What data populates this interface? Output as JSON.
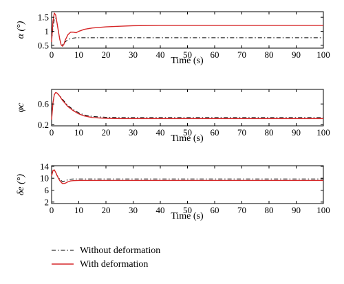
{
  "chart_data": [
    {
      "type": "line",
      "ylabel": "α (°)",
      "xlabel": "Time (s)",
      "xlim": [
        0,
        100
      ],
      "ylim": [
        0.4,
        1.7
      ],
      "xticks": [
        0,
        10,
        20,
        30,
        40,
        50,
        60,
        70,
        80,
        90,
        100
      ],
      "yticks": [
        0.5,
        1,
        1.5
      ],
      "ytick_labels": [
        "0.5",
        "1",
        "1.5"
      ],
      "grid": false,
      "series": [
        {
          "name": "Without deformation",
          "style": "dash-dot",
          "color": "#000000",
          "x": [
            0,
            0.5,
            1,
            1.5,
            2,
            2.5,
            3,
            3.5,
            4,
            4.5,
            5,
            6,
            7,
            8,
            9,
            10,
            12,
            15,
            20,
            30,
            40,
            50,
            60,
            70,
            80,
            90,
            100
          ],
          "y": [
            0.62,
            1.15,
            1.42,
            1.48,
            1.3,
            1.0,
            0.72,
            0.55,
            0.52,
            0.56,
            0.62,
            0.7,
            0.74,
            0.76,
            0.77,
            0.77,
            0.77,
            0.77,
            0.77,
            0.77,
            0.77,
            0.77,
            0.77,
            0.77,
            0.77,
            0.77,
            0.77
          ]
        },
        {
          "name": "With deformation",
          "style": "solid",
          "color": "#d62728",
          "x": [
            0,
            0.5,
            1,
            1.5,
            2,
            2.5,
            3,
            3.5,
            4,
            4.5,
            5,
            6,
            7,
            8,
            9,
            10,
            12,
            15,
            20,
            25,
            30,
            40,
            50,
            60,
            70,
            80,
            90,
            100
          ],
          "y": [
            0.62,
            1.35,
            1.65,
            1.58,
            1.3,
            1.0,
            0.72,
            0.52,
            0.47,
            0.53,
            0.68,
            0.88,
            0.97,
            0.97,
            0.95,
            1.0,
            1.07,
            1.12,
            1.16,
            1.18,
            1.2,
            1.21,
            1.21,
            1.21,
            1.21,
            1.21,
            1.21,
            1.21
          ]
        }
      ]
    },
    {
      "type": "line",
      "ylabel": "φc",
      "xlabel": "Time (s)",
      "xlim": [
        0,
        100
      ],
      "ylim": [
        0.18,
        0.88
      ],
      "xticks": [
        0,
        10,
        20,
        30,
        40,
        50,
        60,
        70,
        80,
        90,
        100
      ],
      "yticks": [
        0.2,
        0.6
      ],
      "ytick_labels": [
        "0.2",
        "0.6"
      ],
      "grid": false,
      "series": [
        {
          "name": "Without deformation",
          "style": "dash-dot",
          "color": "#000000",
          "x": [
            0,
            0.5,
            1,
            1.5,
            2,
            3,
            4,
            5,
            6,
            8,
            10,
            12,
            15,
            18,
            20,
            25,
            30,
            40,
            50,
            60,
            70,
            80,
            90,
            100
          ],
          "y": [
            0.3,
            0.62,
            0.78,
            0.82,
            0.81,
            0.76,
            0.69,
            0.63,
            0.57,
            0.49,
            0.43,
            0.39,
            0.36,
            0.35,
            0.345,
            0.34,
            0.34,
            0.34,
            0.34,
            0.34,
            0.34,
            0.34,
            0.34,
            0.34
          ]
        },
        {
          "name": "With deformation",
          "style": "solid",
          "color": "#d62728",
          "x": [
            0,
            0.5,
            1,
            1.5,
            2,
            3,
            4,
            5,
            6,
            8,
            10,
            12,
            15,
            18,
            20,
            25,
            30,
            40,
            50,
            60,
            70,
            80,
            90,
            100
          ],
          "y": [
            0.3,
            0.62,
            0.78,
            0.82,
            0.81,
            0.75,
            0.67,
            0.61,
            0.55,
            0.47,
            0.41,
            0.37,
            0.34,
            0.33,
            0.325,
            0.32,
            0.32,
            0.32,
            0.32,
            0.32,
            0.32,
            0.32,
            0.32,
            0.32
          ]
        }
      ]
    },
    {
      "type": "line",
      "ylabel": "δe (°)",
      "xlabel": "Time (s)",
      "xlim": [
        0,
        100
      ],
      "ylim": [
        1.5,
        14.2
      ],
      "xticks": [
        0,
        10,
        20,
        30,
        40,
        50,
        60,
        70,
        80,
        90,
        100
      ],
      "yticks": [
        2,
        6,
        10,
        14
      ],
      "ytick_labels": [
        "2",
        "6",
        "10",
        "14"
      ],
      "grid": false,
      "series": [
        {
          "name": "Without deformation",
          "style": "dash-dot",
          "color": "#000000",
          "x": [
            0,
            0.5,
            1,
            1.5,
            2,
            3,
            4,
            5,
            6,
            7,
            8,
            10,
            15,
            20,
            30,
            40,
            50,
            60,
            70,
            80,
            90,
            100
          ],
          "y": [
            10.8,
            12.4,
            12.6,
            12.0,
            11.0,
            9.6,
            8.9,
            9.1,
            9.5,
            9.7,
            9.75,
            9.75,
            9.75,
            9.75,
            9.75,
            9.75,
            9.75,
            9.75,
            9.75,
            9.75,
            9.75,
            9.75
          ]
        },
        {
          "name": "With deformation",
          "style": "solid",
          "color": "#d62728",
          "x": [
            0,
            0.5,
            1,
            1.5,
            2,
            3,
            4,
            5,
            6,
            7,
            8,
            10,
            15,
            20,
            30,
            40,
            50,
            60,
            70,
            80,
            90,
            100
          ],
          "y": [
            10.8,
            12.6,
            12.8,
            12.0,
            10.9,
            9.2,
            8.2,
            8.3,
            8.8,
            9.1,
            9.2,
            9.25,
            9.25,
            9.25,
            9.25,
            9.25,
            9.25,
            9.25,
            9.25,
            9.25,
            9.25,
            9.25
          ]
        }
      ]
    }
  ],
  "legend": {
    "placement": "bottom-left",
    "entries": [
      {
        "label": "Without deformation",
        "style": "dash-dot",
        "color": "#000000"
      },
      {
        "label": "With deformation",
        "style": "solid",
        "color": "#d62728"
      }
    ]
  }
}
